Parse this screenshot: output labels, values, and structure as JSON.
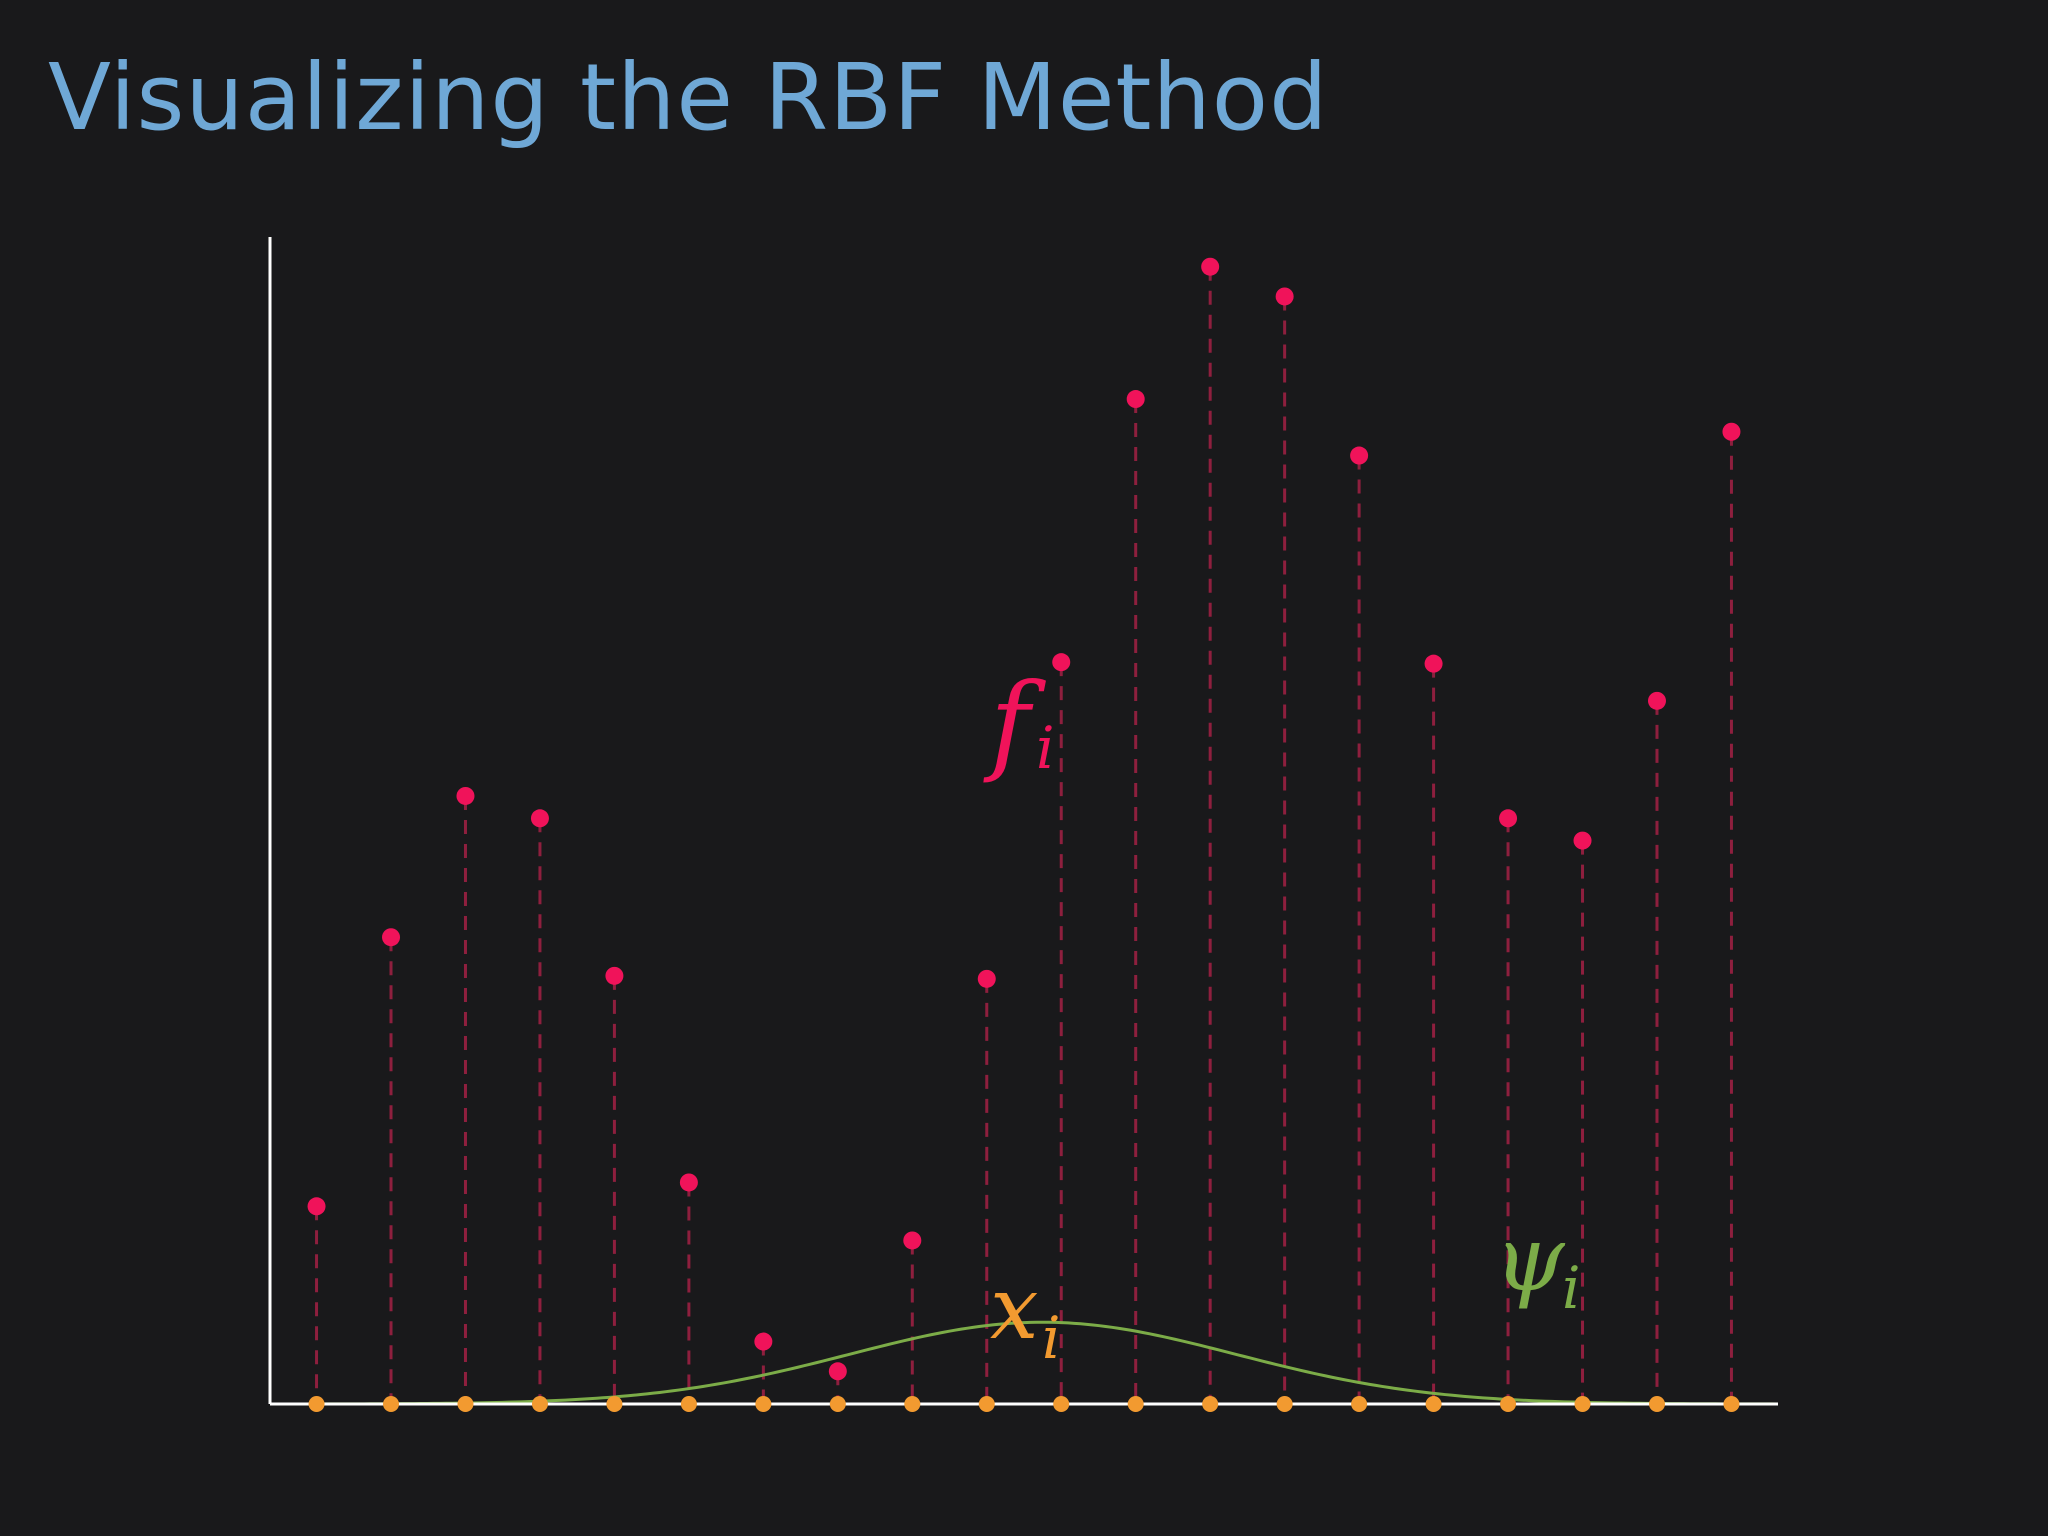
{
  "slide": {
    "title": "Visualizing the RBF Method"
  },
  "colors": {
    "background": "#19191b",
    "title": "#6fa8d6",
    "axis": "#ffffff",
    "f_points": "#f0135a",
    "stem": "#8e1f3e",
    "x_points": "#f29a30",
    "psi_curve": "#7cac48"
  },
  "labels": {
    "f_symbol": "f",
    "f_subscript": "i",
    "x_symbol": "x",
    "x_subscript": "i",
    "psi_symbol": "ψ",
    "psi_subscript": "i"
  },
  "chart_data": {
    "type": "scatter",
    "title": "",
    "xlabel": "",
    "ylabel": "",
    "xlim": [
      0.375,
      20.625
    ],
    "ylim": [
      0,
      7.85
    ],
    "grid": false,
    "x": [
      1,
      2,
      3,
      4,
      5,
      6,
      7,
      8,
      9,
      10,
      11,
      12,
      13,
      14,
      15,
      16,
      17,
      18,
      19,
      20
    ],
    "series": [
      {
        "values": [
          1.33,
          3.14,
          4.09,
          3.94,
          2.88,
          1.49,
          0.42,
          0.22,
          1.1,
          2.86,
          4.99,
          6.76,
          7.65,
          7.45,
          6.38,
          4.98,
          3.94,
          3.79,
          4.73,
          6.54
        ],
        "marker": "dot",
        "stems": "dashed"
      },
      {
        "values": [
          0,
          0,
          0,
          0,
          0,
          0,
          0,
          0,
          0,
          0,
          0,
          0,
          0,
          0,
          0,
          0,
          0,
          0,
          0,
          0
        ],
        "marker": "dot"
      }
    ],
    "curve": {
      "type": "gaussian",
      "center": 10.75,
      "amplitude": 0.55,
      "sigma": 2.6
    }
  }
}
